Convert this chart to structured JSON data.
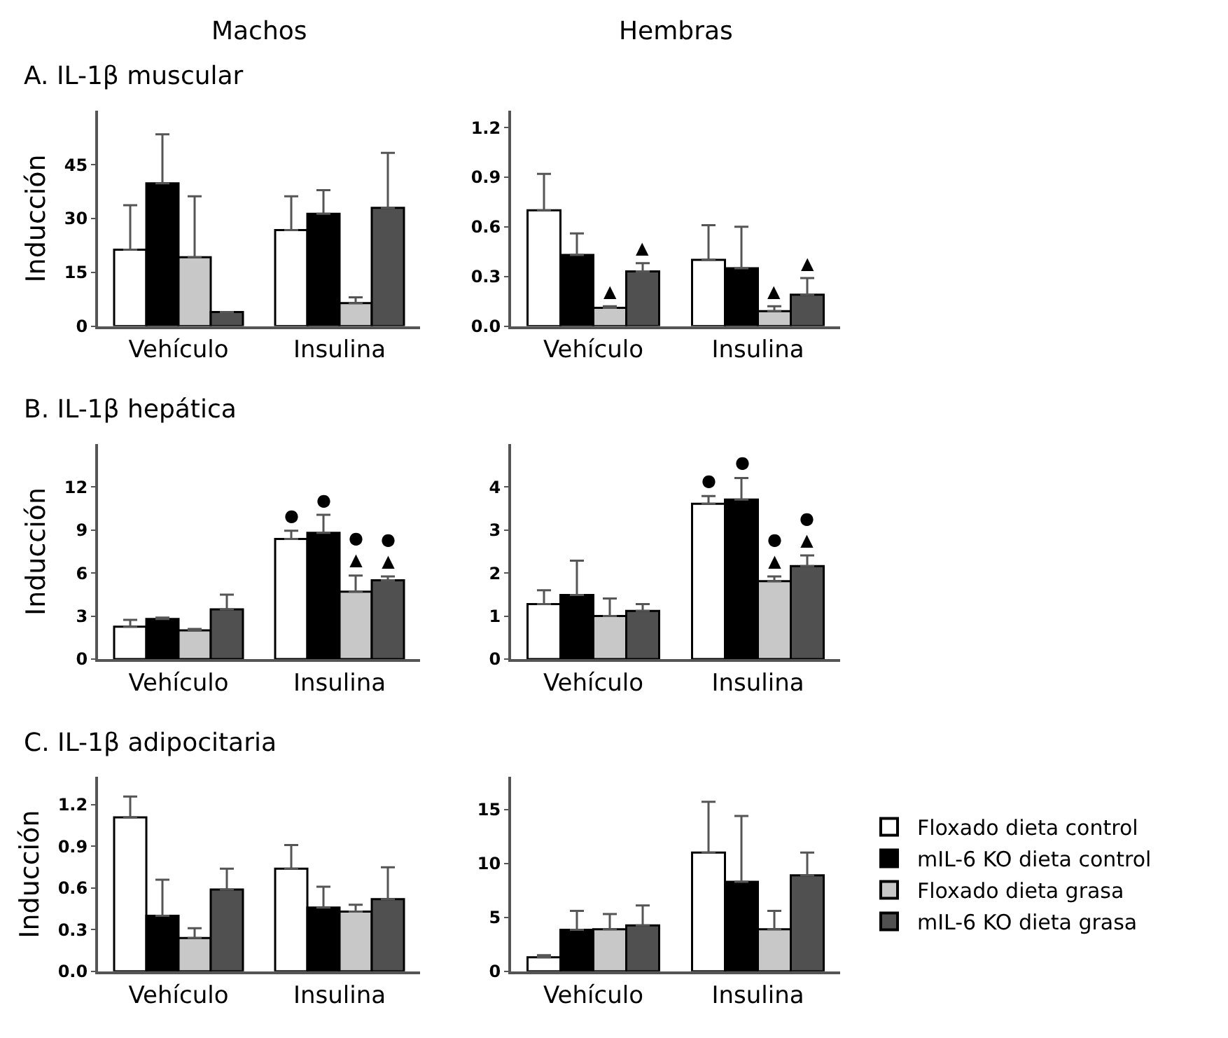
{
  "chart_data": [
    {
      "type": "bar",
      "title": "A. IL-1β muscular",
      "ylabel": "Inducción",
      "annotations": [
        "Machos"
      ],
      "categories": [
        "Vehículo",
        "Insulina"
      ],
      "ylim": [
        0,
        60
      ],
      "yticks": [
        0,
        15,
        30,
        45
      ],
      "series": [
        {
          "color": "#ffffff",
          "values": [
            21.3,
            26.8
          ],
          "errors": [
            [
              21.3,
              33.7
            ],
            [
              26.8,
              36.2
            ]
          ]
        },
        {
          "color": "#000000",
          "values": [
            39.8,
            31.3
          ],
          "errors": [
            [
              39.8,
              53.5
            ],
            [
              31.3,
              37.9
            ]
          ]
        },
        {
          "color": "#c8c8c8",
          "values": [
            19.2,
            6.4
          ],
          "errors": [
            [
              19.2,
              36.2
            ],
            [
              6.4,
              8
            ]
          ]
        },
        {
          "color": "#505050",
          "values": [
            3.9,
            33
          ],
          "errors": [
            null,
            [
              33,
              48.3
            ]
          ]
        }
      ]
    },
    {
      "type": "bar",
      "annotations": [
        "Hembras"
      ],
      "categories": [
        "Vehículo",
        "Insulina"
      ],
      "ylim": [
        0,
        1.3
      ],
      "yticks": [
        {
          "value": 0,
          "label": "0.0"
        },
        0.3,
        0.6,
        0.9,
        1.2
      ],
      "series": [
        {
          "color": "#ffffff",
          "values": [
            0.7,
            0.4
          ],
          "errors": [
            [
              0.7,
              0.92
            ],
            [
              0.4,
              0.61
            ]
          ]
        },
        {
          "color": "#000000",
          "values": [
            0.43,
            0.35
          ],
          "errors": [
            [
              0.43,
              0.56
            ],
            [
              0.35,
              0.6
            ]
          ]
        },
        {
          "color": "#c8c8c8",
          "values": [
            0.11,
            0.09
          ],
          "errors": [
            [
              0.11,
              0.12
            ],
            [
              0.09,
              0.12
            ]
          ],
          "value_labels": [
            "▲",
            "▲"
          ]
        },
        {
          "color": "#505050",
          "values": [
            0.33,
            0.19
          ],
          "errors": [
            [
              0.33,
              0.38
            ],
            [
              0.19,
              0.29
            ]
          ],
          "value_labels": [
            "▲",
            "▲"
          ]
        }
      ]
    },
    {
      "type": "bar",
      "title": "B. IL-1β hepática",
      "ylabel": "Inducción",
      "categories": [
        "Vehículo",
        "Insulina"
      ],
      "ylim": [
        0,
        15
      ],
      "yticks": [
        0,
        3,
        6,
        9,
        12
      ],
      "series": [
        {
          "color": "#ffffff",
          "values": [
            2.26,
            8.38
          ],
          "errors": [
            [
              2.26,
              2.74
            ],
            [
              8.38,
              8.95
            ]
          ],
          "value_labels": [
            null,
            "●"
          ]
        },
        {
          "color": "#000000",
          "values": [
            2.8,
            8.8
          ],
          "errors": [
            [
              2.8,
              2.9
            ],
            [
              8.8,
              10.06
            ]
          ],
          "value_labels": [
            null,
            "●"
          ]
        },
        {
          "color": "#c8c8c8",
          "values": [
            2.0,
            4.7
          ],
          "errors": [
            [
              2.0,
              2.1
            ],
            [
              4.7,
              5.83
            ]
          ],
          "value_labels": [
            null,
            "●\n▲"
          ]
        },
        {
          "color": "#505050",
          "values": [
            3.47,
            5.5
          ],
          "errors": [
            [
              3.47,
              4.5
            ],
            [
              5.5,
              5.76
            ]
          ],
          "value_labels": [
            null,
            "●\n▲"
          ]
        }
      ]
    },
    {
      "type": "bar",
      "categories": [
        "Vehículo",
        "Insulina"
      ],
      "ylim": [
        0,
        5
      ],
      "yticks": [
        0,
        1,
        2,
        3,
        4
      ],
      "series": [
        {
          "color": "#ffffff",
          "values": [
            1.28,
            3.61
          ],
          "errors": [
            [
              1.28,
              1.6
            ],
            [
              3.61,
              3.79
            ]
          ],
          "value_labels": [
            null,
            "●"
          ]
        },
        {
          "color": "#000000",
          "values": [
            1.49,
            3.71
          ],
          "errors": [
            [
              1.49,
              2.29
            ],
            [
              3.71,
              4.21
            ]
          ],
          "value_labels": [
            null,
            "●"
          ]
        },
        {
          "color": "#c8c8c8",
          "values": [
            1.0,
            1.81
          ],
          "errors": [
            [
              1.0,
              1.41
            ],
            [
              1.81,
              1.92
            ]
          ],
          "value_labels": [
            null,
            "●\n▲"
          ]
        },
        {
          "color": "#505050",
          "values": [
            1.12,
            2.16
          ],
          "errors": [
            [
              1.12,
              1.28
            ],
            [
              2.16,
              2.41
            ]
          ],
          "value_labels": [
            null,
            "●\n▲"
          ]
        }
      ]
    },
    {
      "type": "bar",
      "title": "C. IL-1β adipocitaria",
      "ylabel": "Inducción",
      "categories": [
        "Vehículo",
        "Insulina"
      ],
      "ylim": [
        0,
        1.4
      ],
      "yticks": [
        {
          "value": 0,
          "label": "0.0"
        },
        0.3,
        0.6,
        0.9,
        1.2
      ],
      "series": [
        {
          "color": "#ffffff",
          "values": [
            1.11,
            0.74
          ],
          "errors": [
            [
              1.11,
              1.26
            ],
            [
              0.74,
              0.91
            ]
          ]
        },
        {
          "color": "#000000",
          "values": [
            0.4,
            0.46
          ],
          "errors": [
            [
              0.4,
              0.66
            ],
            [
              0.46,
              0.61
            ]
          ]
        },
        {
          "color": "#c8c8c8",
          "values": [
            0.24,
            0.43
          ],
          "errors": [
            [
              0.24,
              0.31
            ],
            [
              0.43,
              0.48
            ]
          ]
        },
        {
          "color": "#505050",
          "values": [
            0.59,
            0.52
          ],
          "errors": [
            [
              0.59,
              0.74
            ],
            [
              0.52,
              0.75
            ]
          ]
        }
      ]
    },
    {
      "type": "bar",
      "legend": "right",
      "categories": [
        "Vehículo",
        "Insulina"
      ],
      "ylim": [
        0,
        18
      ],
      "yticks": [
        0,
        5,
        10,
        15
      ],
      "series": [
        {
          "name": "Floxado dieta control",
          "color": "#ffffff",
          "values": [
            1.3,
            11.0
          ],
          "errors": [
            [
              1.3,
              1.5
            ],
            [
              11.0,
              15.7
            ]
          ]
        },
        {
          "name": "mIL-6 KO dieta control",
          "color": "#000000",
          "values": [
            3.85,
            8.3
          ],
          "errors": [
            [
              3.85,
              5.6
            ],
            [
              8.3,
              14.4
            ]
          ]
        },
        {
          "name": "Floxado dieta grasa",
          "color": "#c8c8c8",
          "values": [
            3.9,
            3.9
          ],
          "errors": [
            [
              3.9,
              5.3
            ],
            [
              3.9,
              5.6
            ]
          ]
        },
        {
          "name": "mIL-6 KO dieta grasa",
          "color": "#505050",
          "values": [
            4.25,
            8.9
          ],
          "errors": [
            [
              4.25,
              6.1
            ],
            [
              8.9,
              11.0
            ]
          ]
        }
      ]
    }
  ]
}
